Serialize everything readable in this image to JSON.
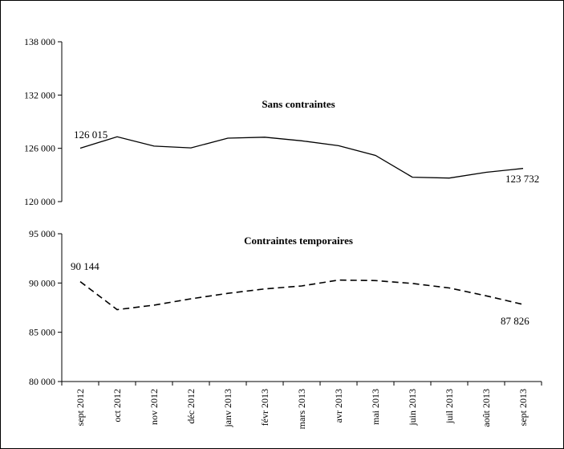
{
  "chart_data": [
    {
      "type": "line",
      "title": "Sans contraintes",
      "categories": [
        "sept 2012",
        "oct 2012",
        "nov 2012",
        "déc 2012",
        "janv 2013",
        "févr 2013",
        "mars 2013",
        "avr 2013",
        "mai 2013",
        "juin 2013",
        "juil 2013",
        "août 2013",
        "sept 2013"
      ],
      "series": [
        {
          "line_style": "solid",
          "values": [
            126015,
            127300,
            126250,
            126050,
            127150,
            127250,
            126850,
            126300,
            125200,
            122750,
            122650,
            123300,
            123732
          ]
        }
      ],
      "ylim": [
        120000,
        138000
      ],
      "yticks": [
        120000,
        126000,
        132000,
        138000
      ],
      "ytick_labels": [
        "120 000",
        "126 000",
        "132 000",
        "138 000"
      ],
      "data_labels": [
        "126 015",
        "123 732"
      ],
      "grid": false
    },
    {
      "type": "line",
      "title": "Contraintes temporaires",
      "categories": [
        "sept 2012",
        "oct 2012",
        "nov 2012",
        "déc 2012",
        "janv 2013",
        "févr 2013",
        "mars 2013",
        "avr 2013",
        "mai 2013",
        "juin 2013",
        "juil 2013",
        "août 2013",
        "sept 2013"
      ],
      "series": [
        {
          "line_style": "dashed",
          "values": [
            90144,
            87300,
            87750,
            88400,
            88950,
            89400,
            89700,
            90300,
            90250,
            89950,
            89500,
            88700,
            87826
          ]
        }
      ],
      "ylim": [
        80000,
        95000
      ],
      "yticks": [
        80000,
        85000,
        90000,
        95000
      ],
      "ytick_labels": [
        "80 000",
        "85 000",
        "90 000",
        "95 000"
      ],
      "data_labels": [
        "90 144",
        "87 826"
      ],
      "grid": false
    }
  ]
}
